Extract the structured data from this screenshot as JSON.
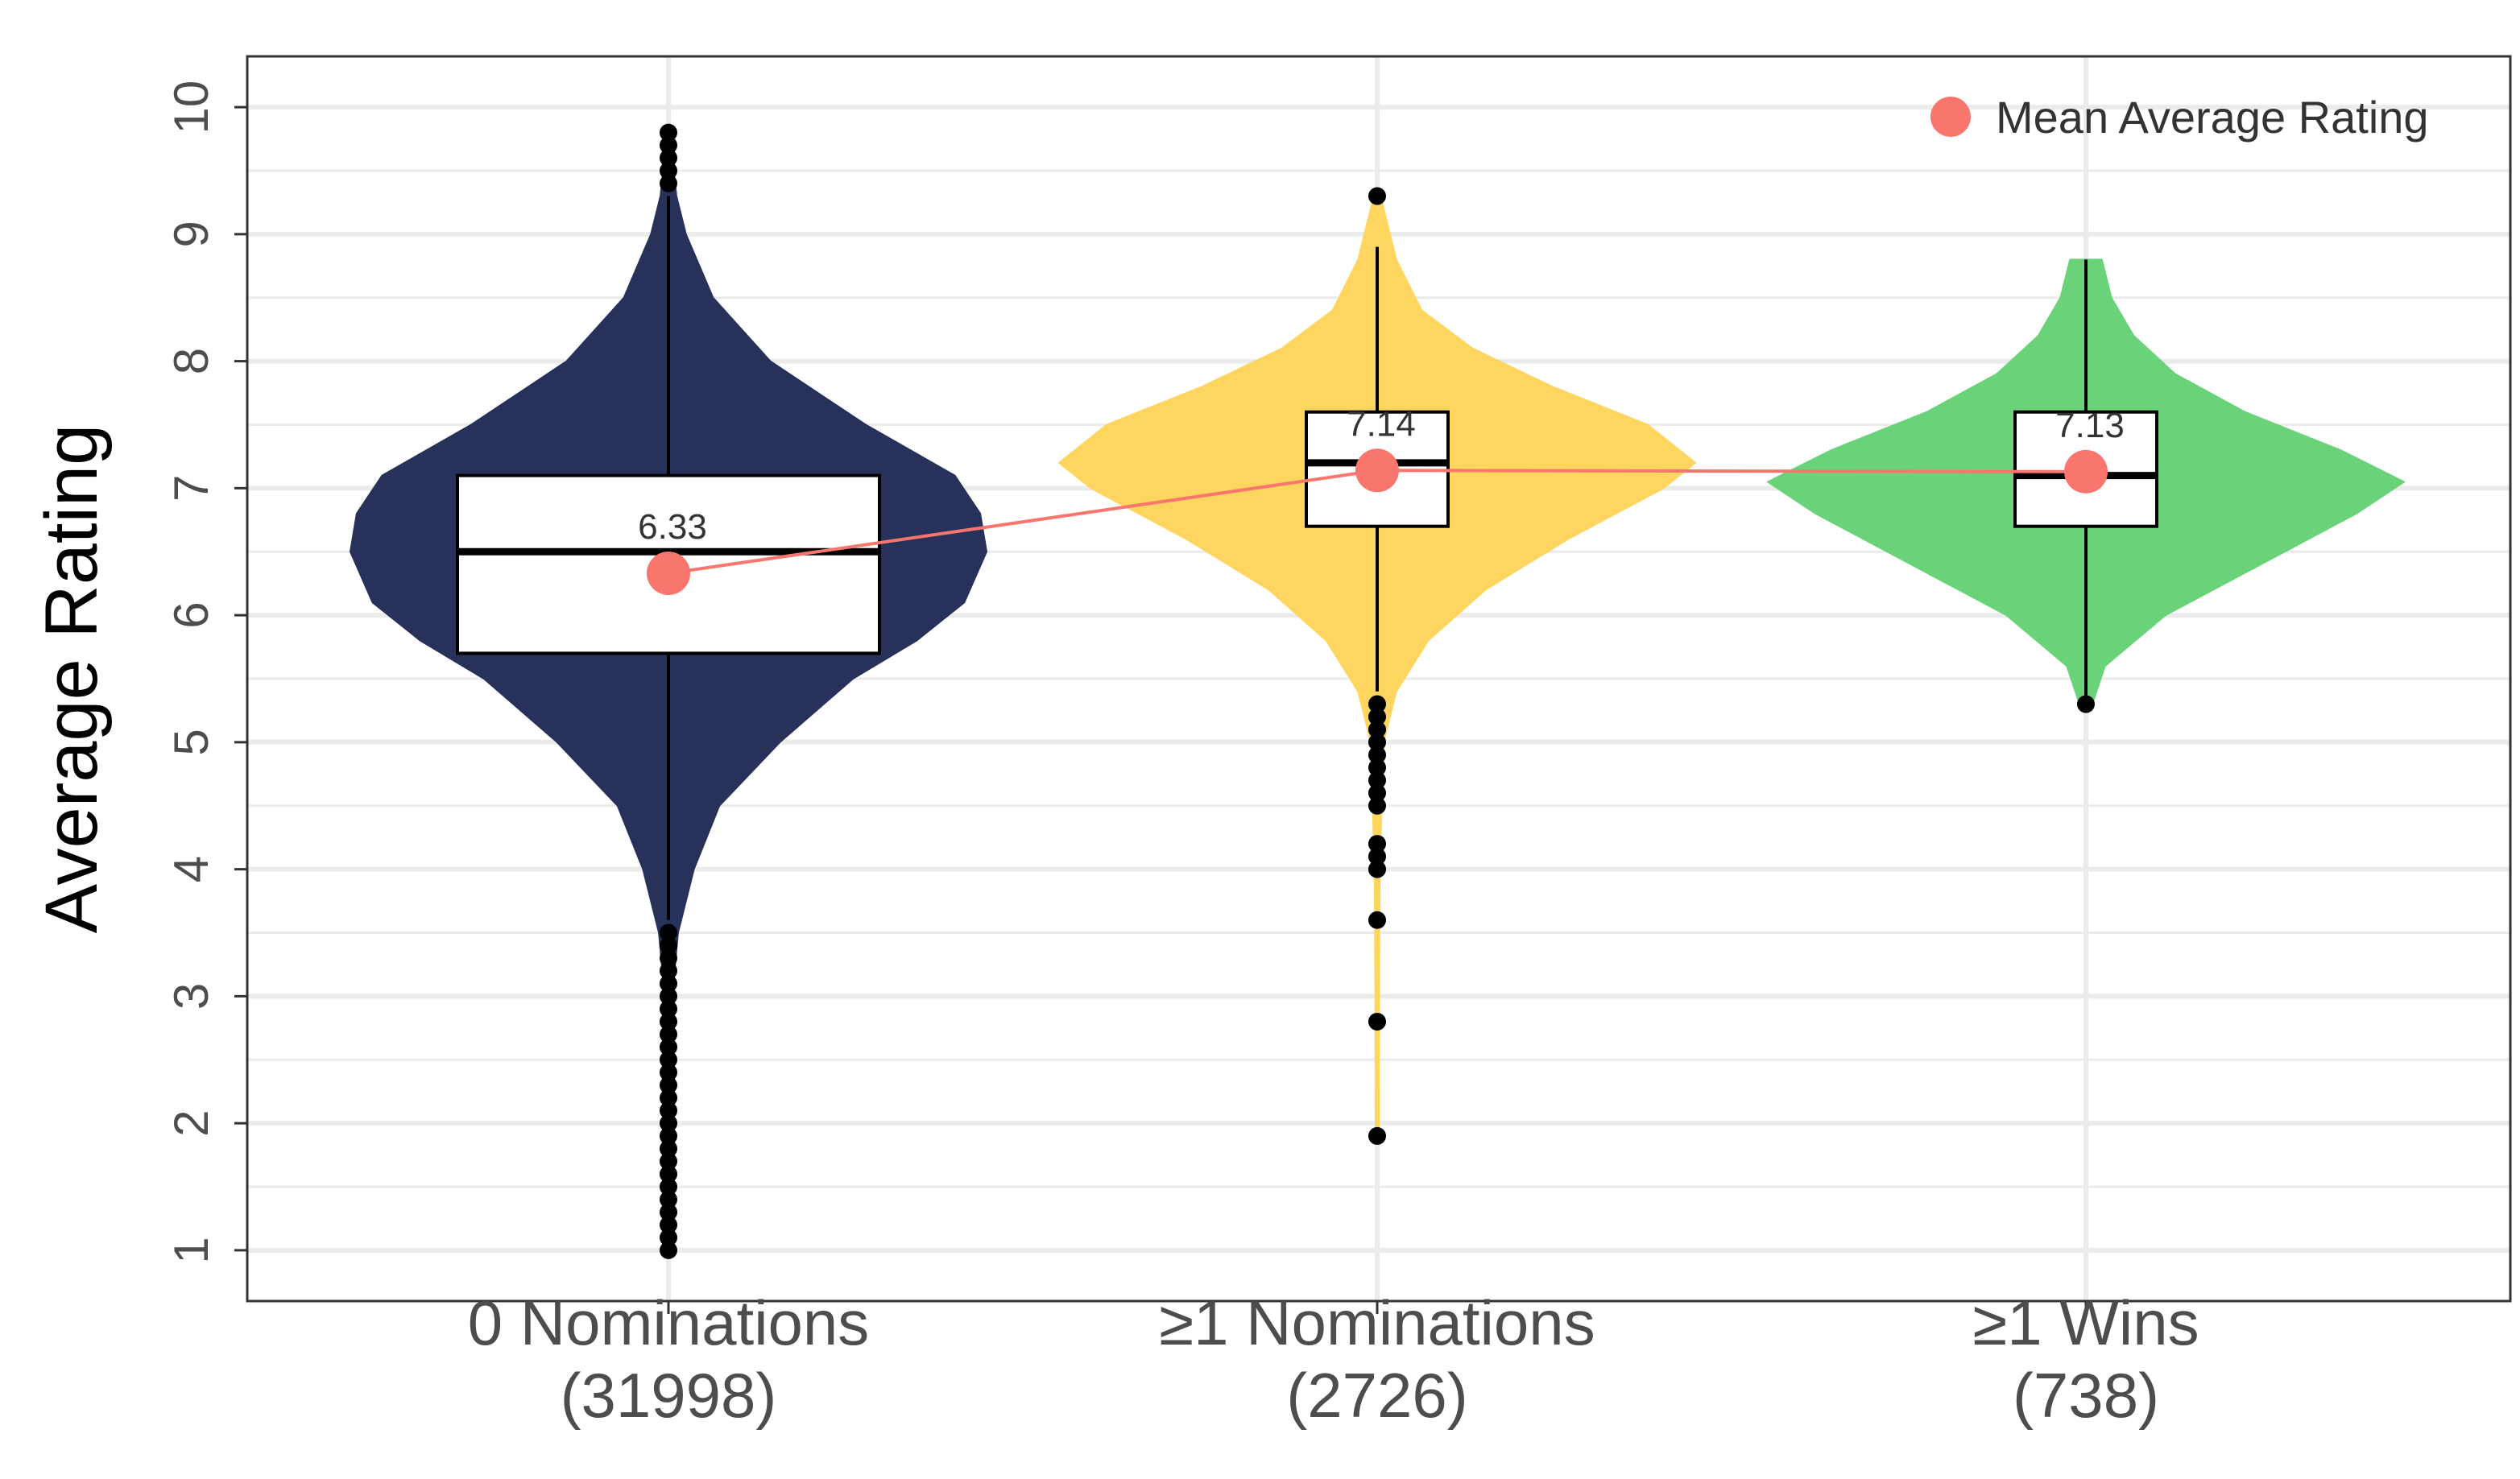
{
  "chart_data": {
    "type": "violin",
    "title": "",
    "xlabel": "",
    "ylabel": "Average Rating",
    "ylim": [
      0.6,
      10.4
    ],
    "yticks": [
      1,
      2,
      3,
      4,
      5,
      6,
      7,
      8,
      9,
      10
    ],
    "grid": true,
    "legend": {
      "position": "top-right",
      "entries": [
        {
          "label": "Mean Average Rating",
          "color": "#F8766D"
        }
      ]
    },
    "mean_line_color": "#F8766D",
    "categories": [
      {
        "label": "0 Nominations",
        "count": "(31998)",
        "color": "#27315A",
        "box": {
          "q1": 5.7,
          "median": 6.5,
          "q3": 7.1,
          "whisker_low": 3.6,
          "whisker_high": 9.3
        },
        "mean": 6.33,
        "mean_label": "6.33",
        "outliers": [
          9.4,
          9.5,
          9.6,
          9.7,
          9.8,
          3.5,
          3.4,
          3.3,
          3.2,
          3.1,
          3.0,
          2.9,
          2.8,
          2.7,
          2.6,
          2.5,
          2.4,
          2.3,
          2.2,
          2.1,
          2.0,
          1.9,
          1.8,
          1.7,
          1.6,
          1.5,
          1.4,
          1.3,
          1.2,
          1.1,
          1.0
        ],
        "density": [
          [
            1.0,
            0.005
          ],
          [
            2.0,
            0.006
          ],
          [
            3.0,
            0.012
          ],
          [
            3.5,
            0.03
          ],
          [
            4.0,
            0.08
          ],
          [
            4.5,
            0.16
          ],
          [
            5.0,
            0.35
          ],
          [
            5.5,
            0.58
          ],
          [
            5.8,
            0.78
          ],
          [
            6.1,
            0.93
          ],
          [
            6.5,
            1.0
          ],
          [
            6.8,
            0.98
          ],
          [
            7.1,
            0.9
          ],
          [
            7.5,
            0.62
          ],
          [
            8.0,
            0.32
          ],
          [
            8.5,
            0.14
          ],
          [
            9.0,
            0.055
          ],
          [
            9.3,
            0.025
          ],
          [
            9.8,
            0.004
          ]
        ]
      },
      {
        "label": "≥1 Nominations",
        "count": "(2726)",
        "color": "#FED55E",
        "box": {
          "q1": 6.7,
          "median": 7.2,
          "q3": 7.6,
          "whisker_low": 5.4,
          "whisker_high": 8.9
        },
        "mean": 7.14,
        "mean_label": "7.14",
        "outliers": [
          9.3,
          5.3,
          5.2,
          5.1,
          5.0,
          4.9,
          4.8,
          4.7,
          4.6,
          4.5,
          4.2,
          4.1,
          4.0,
          3.6,
          2.8,
          1.9
        ],
        "density": [
          [
            1.9,
            0.005
          ],
          [
            3.0,
            0.006
          ],
          [
            4.0,
            0.008
          ],
          [
            5.0,
            0.02
          ],
          [
            5.4,
            0.06
          ],
          [
            5.8,
            0.16
          ],
          [
            6.2,
            0.34
          ],
          [
            6.6,
            0.6
          ],
          [
            7.0,
            0.9
          ],
          [
            7.2,
            1.0
          ],
          [
            7.5,
            0.85
          ],
          [
            7.8,
            0.55
          ],
          [
            8.1,
            0.3
          ],
          [
            8.4,
            0.14
          ],
          [
            8.8,
            0.06
          ],
          [
            9.3,
            0.01
          ]
        ]
      },
      {
        "label": "≥1 Wins",
        "count": "(738)",
        "color": "#6AD37A",
        "box": {
          "q1": 6.7,
          "median": 7.1,
          "q3": 7.6,
          "whisker_low": 5.3,
          "whisker_high": 8.8
        },
        "mean": 7.13,
        "mean_label": "7.13",
        "outliers": [
          5.3
        ],
        "density": [
          [
            5.3,
            0.02
          ],
          [
            5.6,
            0.06
          ],
          [
            6.0,
            0.25
          ],
          [
            6.4,
            0.55
          ],
          [
            6.8,
            0.85
          ],
          [
            7.05,
            1.0
          ],
          [
            7.3,
            0.8
          ],
          [
            7.6,
            0.5
          ],
          [
            7.9,
            0.28
          ],
          [
            8.2,
            0.15
          ],
          [
            8.5,
            0.08
          ],
          [
            8.8,
            0.05
          ]
        ]
      }
    ]
  }
}
